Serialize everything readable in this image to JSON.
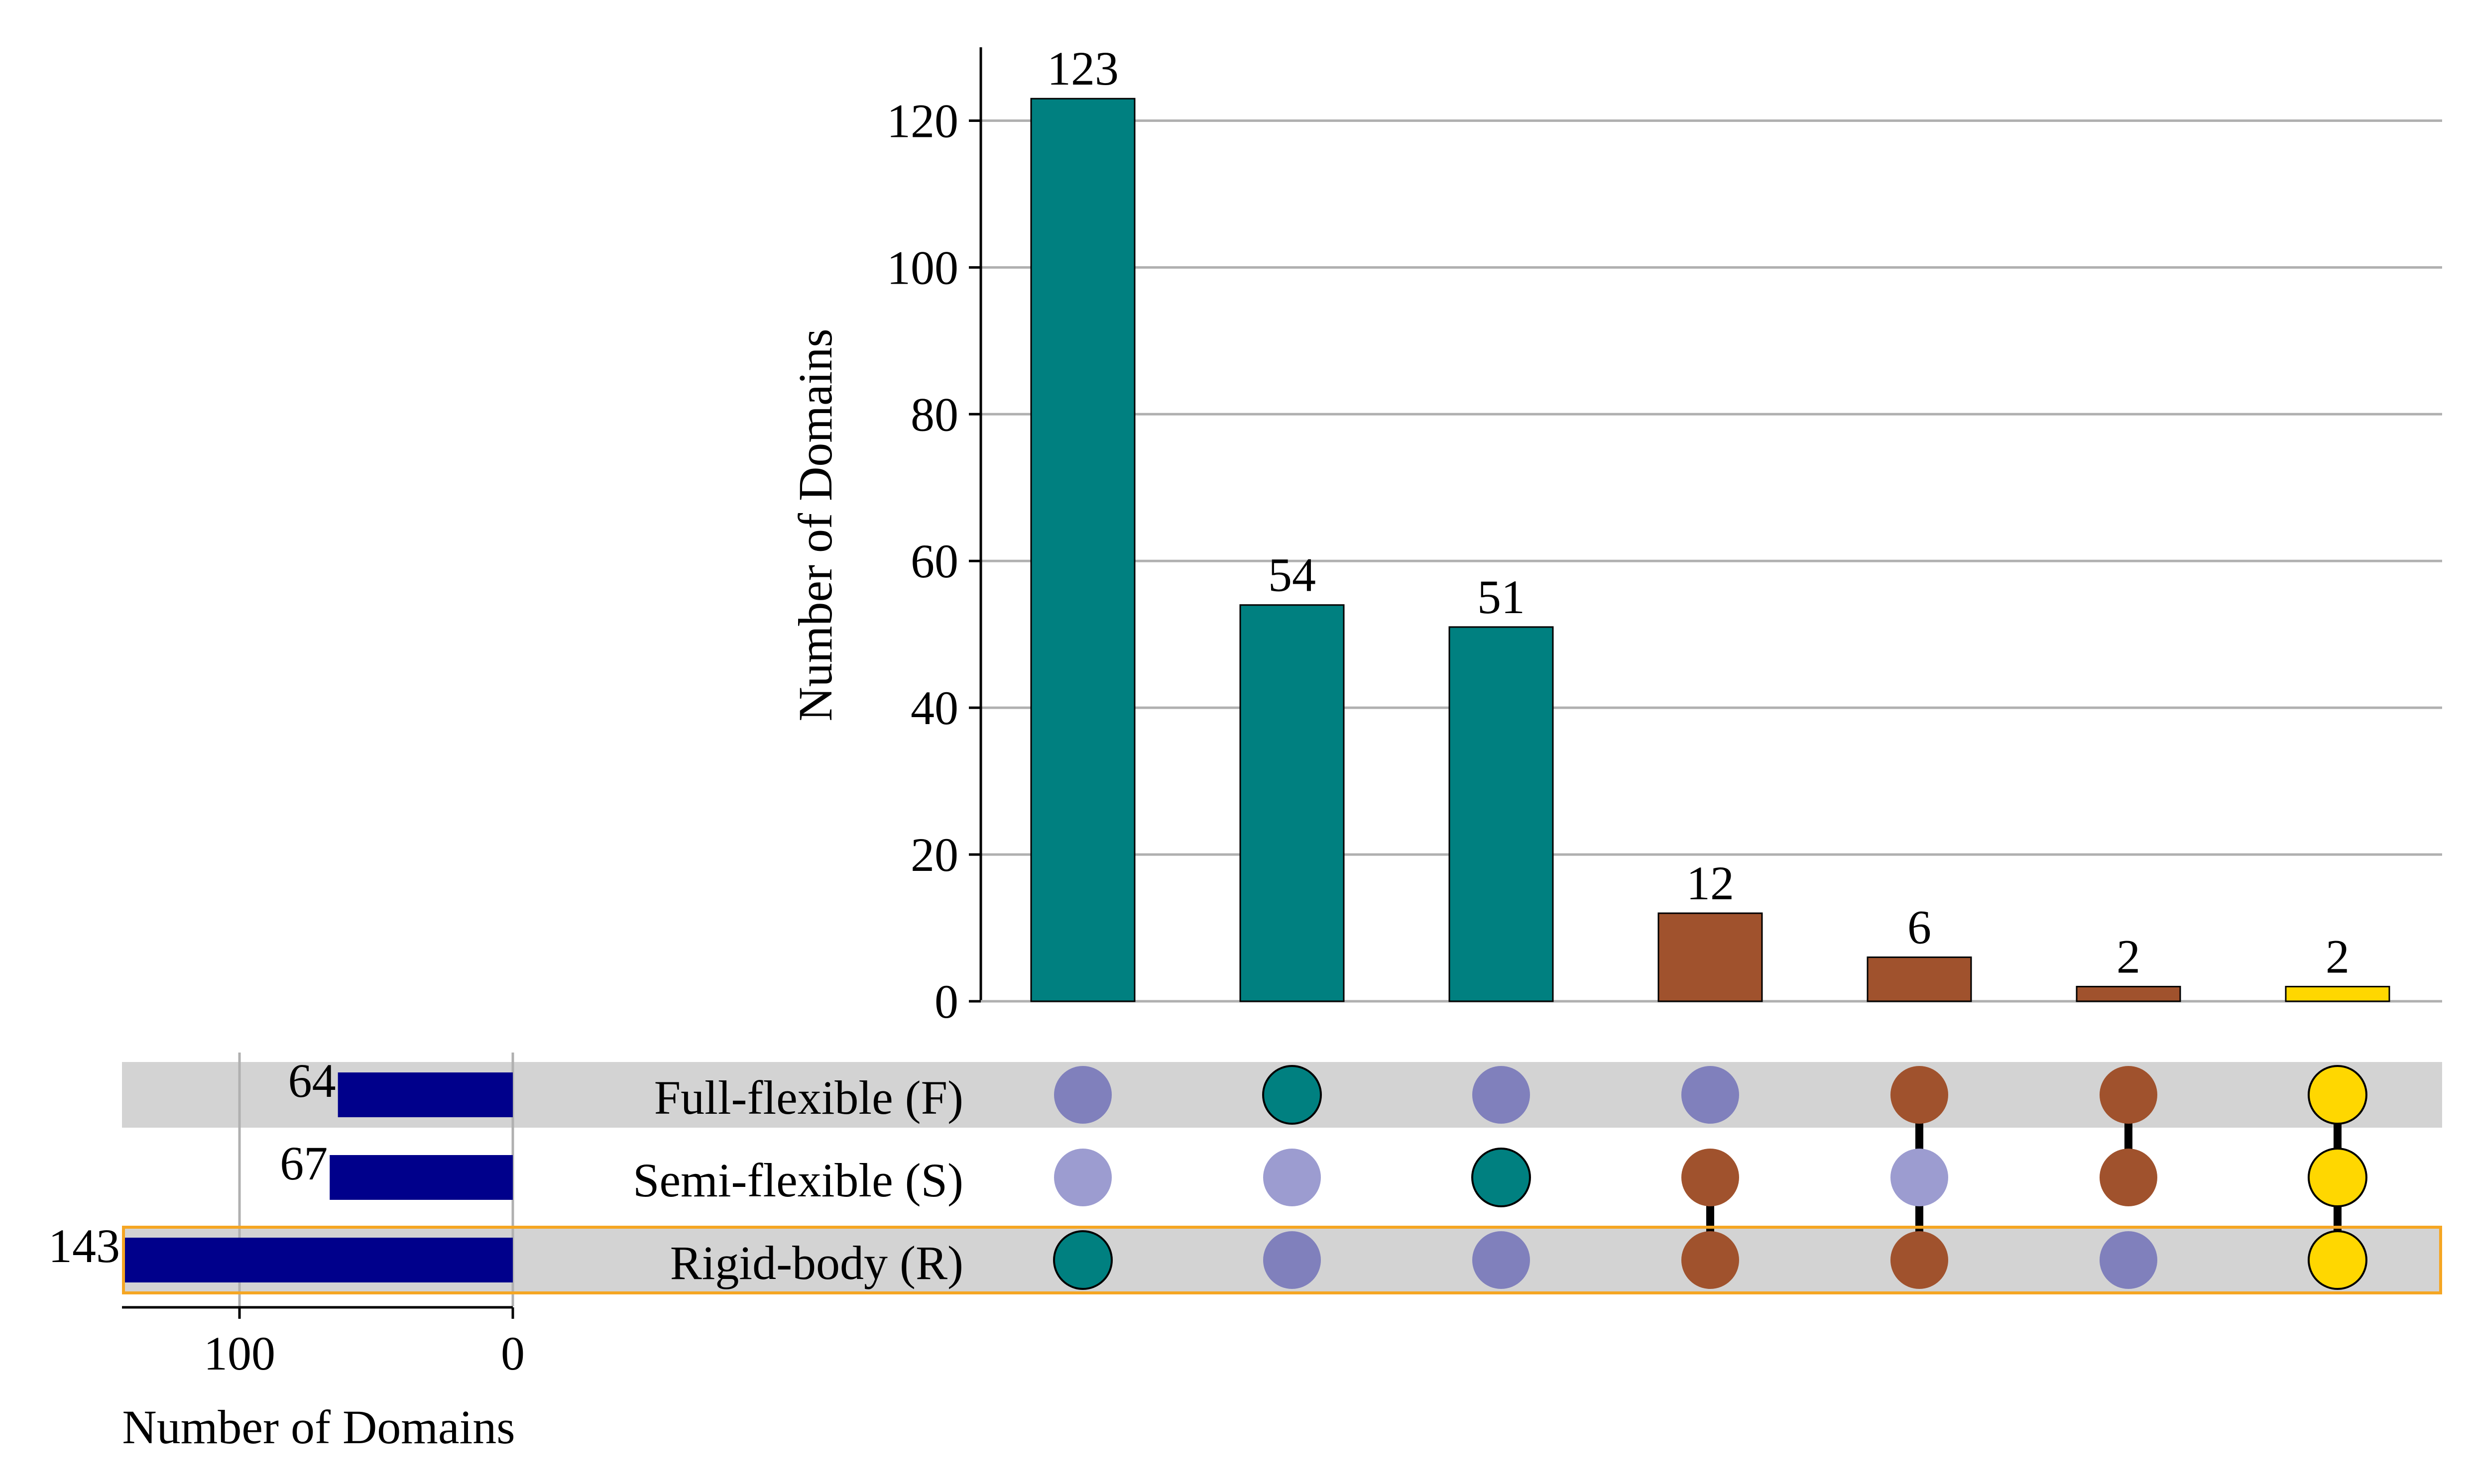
{
  "chart_data": {
    "type": "upset",
    "sets": [
      {
        "name": "Full-flexible (F)",
        "size": 64
      },
      {
        "name": "Semi-flexible (S)",
        "size": 67
      },
      {
        "name": "Rigid-body (R)",
        "size": 143
      }
    ],
    "highlighted_set": "Rigid-body (R)",
    "intersections": [
      {
        "value": 123,
        "members": [
          "Rigid-body (R)"
        ],
        "color": "#008080"
      },
      {
        "value": 54,
        "members": [
          "Full-flexible (F)"
        ],
        "color": "#008080"
      },
      {
        "value": 51,
        "members": [
          "Semi-flexible (S)"
        ],
        "color": "#008080"
      },
      {
        "value": 12,
        "members": [
          "Semi-flexible (S)",
          "Rigid-body (R)"
        ],
        "color": "#A0522D"
      },
      {
        "value": 6,
        "members": [
          "Full-flexible (F)",
          "Rigid-body (R)"
        ],
        "color": "#A0522D"
      },
      {
        "value": 2,
        "members": [
          "Full-flexible (F)",
          "Semi-flexible (S)"
        ],
        "color": "#A0522D"
      },
      {
        "value": 2,
        "members": [
          "Full-flexible (F)",
          "Semi-flexible (S)",
          "Rigid-body (R)"
        ],
        "color": "#FFD700"
      }
    ],
    "intersection_axis": {
      "ylabel": "Number of Domains",
      "ylim": [
        0,
        130
      ],
      "ticks": [
        0,
        20,
        40,
        60,
        80,
        100,
        120
      ],
      "grid": true
    },
    "set_size_axis": {
      "xlabel": "Number of Domains",
      "ticks": [
        100,
        0
      ],
      "xlim": [
        143,
        0
      ],
      "grid": true
    },
    "colors": {
      "set_size_bar": "#00008B",
      "inactive_dot_shaded_row": "#8080BC",
      "inactive_dot_white_row": "#9C9CD0",
      "row_shade": "#D3D3D3",
      "highlight_border": "#F5A623",
      "connector": "#000000",
      "grid": "#B0B0B0"
    }
  }
}
